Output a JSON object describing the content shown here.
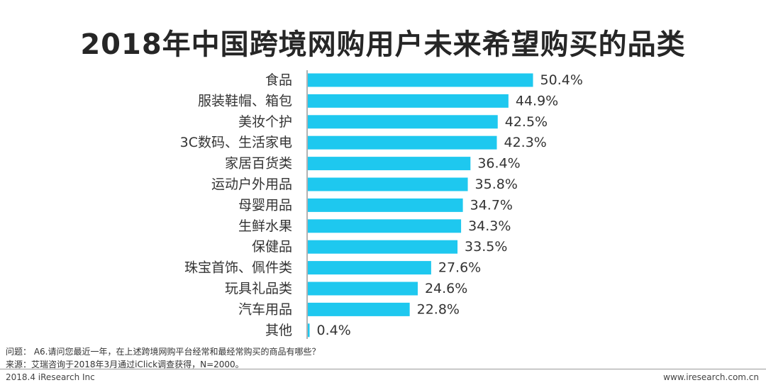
{
  "chart_data": {
    "type": "bar",
    "orientation": "horizontal",
    "title": "2018年中国跨境网购用户未来希望购买的品类",
    "categories": [
      "食品",
      "服装鞋帽、箱包",
      "美妆个护",
      "3C数码、生活家电",
      "家居百货类",
      "运动户外用品",
      "母婴用品",
      "生鲜水果",
      "保健品",
      "珠宝首饰、佩件类",
      "玩具礼品类",
      "汽车用品",
      "其他"
    ],
    "values": [
      50.4,
      44.9,
      42.5,
      42.3,
      36.4,
      35.8,
      34.7,
      34.3,
      33.5,
      27.6,
      24.6,
      22.8,
      0.4
    ],
    "value_labels": [
      "50.4%",
      "44.9%",
      "42.5%",
      "42.3%",
      "36.4%",
      "35.8%",
      "34.7%",
      "34.3%",
      "33.5%",
      "27.6%",
      "24.6%",
      "22.8%",
      "0.4%"
    ],
    "unit": "%",
    "xlim": [
      0,
      55
    ],
    "bar_color": "#1ec8ef",
    "axis_color": "#999999",
    "grid": false
  },
  "footnote": {
    "question": "问题： A6.请问您最近一年，在上述跨境网购平台经常和最经常购买的商品有哪些？",
    "source": "来源：艾瑞咨询于2018年3月通过iClick调查获得，N=2000。"
  },
  "footer": {
    "copyright": "2018.4 iResearch Inc",
    "website": "www.iresearch.com.cn"
  }
}
